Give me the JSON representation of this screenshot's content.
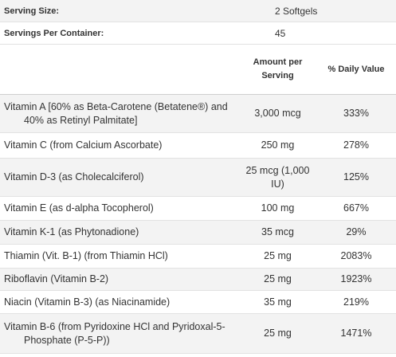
{
  "meta": [
    {
      "label": "Serving Size:",
      "value": "2 Softgels"
    },
    {
      "label": "Servings Per Container:",
      "value": "45"
    }
  ],
  "table": {
    "header": [
      "Amount per Serving",
      "% Daily Value"
    ],
    "rows": [
      [
        "Vitamin A [60% as Beta-Carotene (Betatene®) and 40% as Retinyl Palmitate]",
        "3,000 mcg",
        "333%"
      ],
      [
        "Vitamin C (from Calcium Ascorbate)",
        "250 mg",
        "278%"
      ],
      [
        "Vitamin D-3 (as Cholecalciferol)",
        "25 mcg (1,000 IU)",
        "125%"
      ],
      [
        "Vitamin E (as d-alpha Tocopherol)",
        "100 mg",
        "667%"
      ],
      [
        "Vitamin K-1 (as Phytonadione)",
        "35 mcg",
        "29%"
      ],
      [
        "Thiamin (Vit. B-1) (from Thiamin HCl)",
        "25 mg",
        "2083%"
      ],
      [
        "Riboflavin (Vitamin B-2)",
        "25 mg",
        "1923%"
      ],
      [
        "Niacin (Vitamin B-3) (as Niacinamide)",
        "35 mg",
        "219%"
      ],
      [
        "Vitamin B-6 (from Pyridoxine HCl and Pyridoxal-5-Phosphate (P-5-P))",
        "25 mg",
        "1471%"
      ]
    ]
  }
}
